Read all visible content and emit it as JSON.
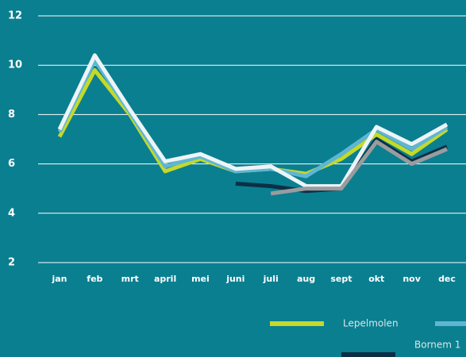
{
  "chart_data": {
    "type": "line",
    "categories": [
      "jan",
      "feb",
      "mrt",
      "april",
      "mei",
      "juni",
      "juli",
      "aug",
      "sept",
      "okt",
      "nov",
      "dec"
    ],
    "ylim": [
      2,
      12
    ],
    "yticks": [
      2,
      4,
      6,
      8,
      10,
      12
    ],
    "grid": true,
    "series": [
      {
        "color": "#0b2f45",
        "name": "Bornem 1",
        "values": [
          null,
          null,
          null,
          null,
          null,
          5.2,
          5.1,
          4.9,
          5.0,
          7.0,
          6.1,
          6.7
        ]
      },
      {
        "color": "#c5d928",
        "name": "Lepelmolen",
        "values": [
          7.1,
          9.8,
          8.0,
          5.7,
          6.2,
          5.7,
          5.8,
          5.6,
          6.2,
          7.2,
          6.4,
          7.4
        ]
      },
      {
        "color": "#5fb6d3",
        "values": [
          7.3,
          10.2,
          8.1,
          5.9,
          6.3,
          5.7,
          5.8,
          5.5,
          6.4,
          7.4,
          6.6,
          7.5
        ]
      },
      {
        "color": "#eef4f6",
        "values": [
          7.4,
          10.4,
          8.2,
          6.1,
          6.4,
          5.8,
          5.9,
          5.1,
          5.1,
          7.5,
          6.8,
          7.6
        ]
      },
      {
        "color": "#9a9c9e",
        "values": [
          null,
          null,
          null,
          null,
          null,
          null,
          4.8,
          5.0,
          5.0,
          6.9,
          6.0,
          6.6
        ]
      }
    ]
  }
}
